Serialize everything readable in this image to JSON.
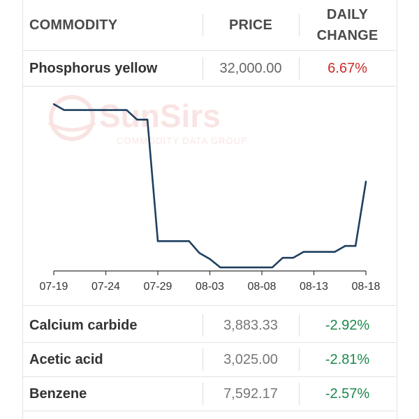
{
  "header": {
    "commodity": "COMMODITY",
    "price": "PRICE",
    "change_line1": "DAILY",
    "change_line2": "CHANGE"
  },
  "featured": {
    "name": "Phosphorus yellow",
    "price": "32,000.00",
    "change": "6.67%"
  },
  "watermark": {
    "brand": "SunSirs",
    "tagline": "COMMODITY DATA GROUP"
  },
  "rows": [
    {
      "name": "Calcium carbide",
      "price": "3,883.33",
      "change": "-2.92%"
    },
    {
      "name": "Acetic acid",
      "price": "3,025.00",
      "change": "-2.81%"
    },
    {
      "name": "Benzene",
      "price": "7,592.17",
      "change": "-2.57%"
    }
  ],
  "colors": {
    "line": "#1f3f5f",
    "up": "#cc2b2b",
    "down": "#1b8a4a"
  },
  "chart_data": {
    "type": "line",
    "x_ticks": [
      "07-19",
      "07-24",
      "07-29",
      "08-03",
      "08-08",
      "08-13",
      "08-18"
    ],
    "x": [
      "07-19",
      "07-20",
      "07-21",
      "07-22",
      "07-23",
      "07-24",
      "07-25",
      "07-26",
      "07-27",
      "07-28",
      "07-29",
      "07-30",
      "07-31",
      "08-01",
      "08-02",
      "08-03",
      "08-04",
      "08-05",
      "08-06",
      "08-07",
      "08-08",
      "08-09",
      "08-10",
      "08-11",
      "08-12",
      "08-13",
      "08-14",
      "08-15",
      "08-16",
      "08-17",
      "08-18"
    ],
    "series": [
      {
        "values": [
          36500,
          36000,
          36000,
          36000,
          36000,
          36000,
          36000,
          36000,
          35200,
          35200,
          25000,
          25000,
          25000,
          25000,
          24000,
          23500,
          22800,
          22800,
          22800,
          22800,
          22800,
          22800,
          23600,
          23600,
          24100,
          24100,
          24100,
          24100,
          24600,
          24600,
          30000
        ]
      }
    ],
    "ylim": [
      22500,
      37500
    ],
    "grid": false,
    "legend": "none"
  }
}
